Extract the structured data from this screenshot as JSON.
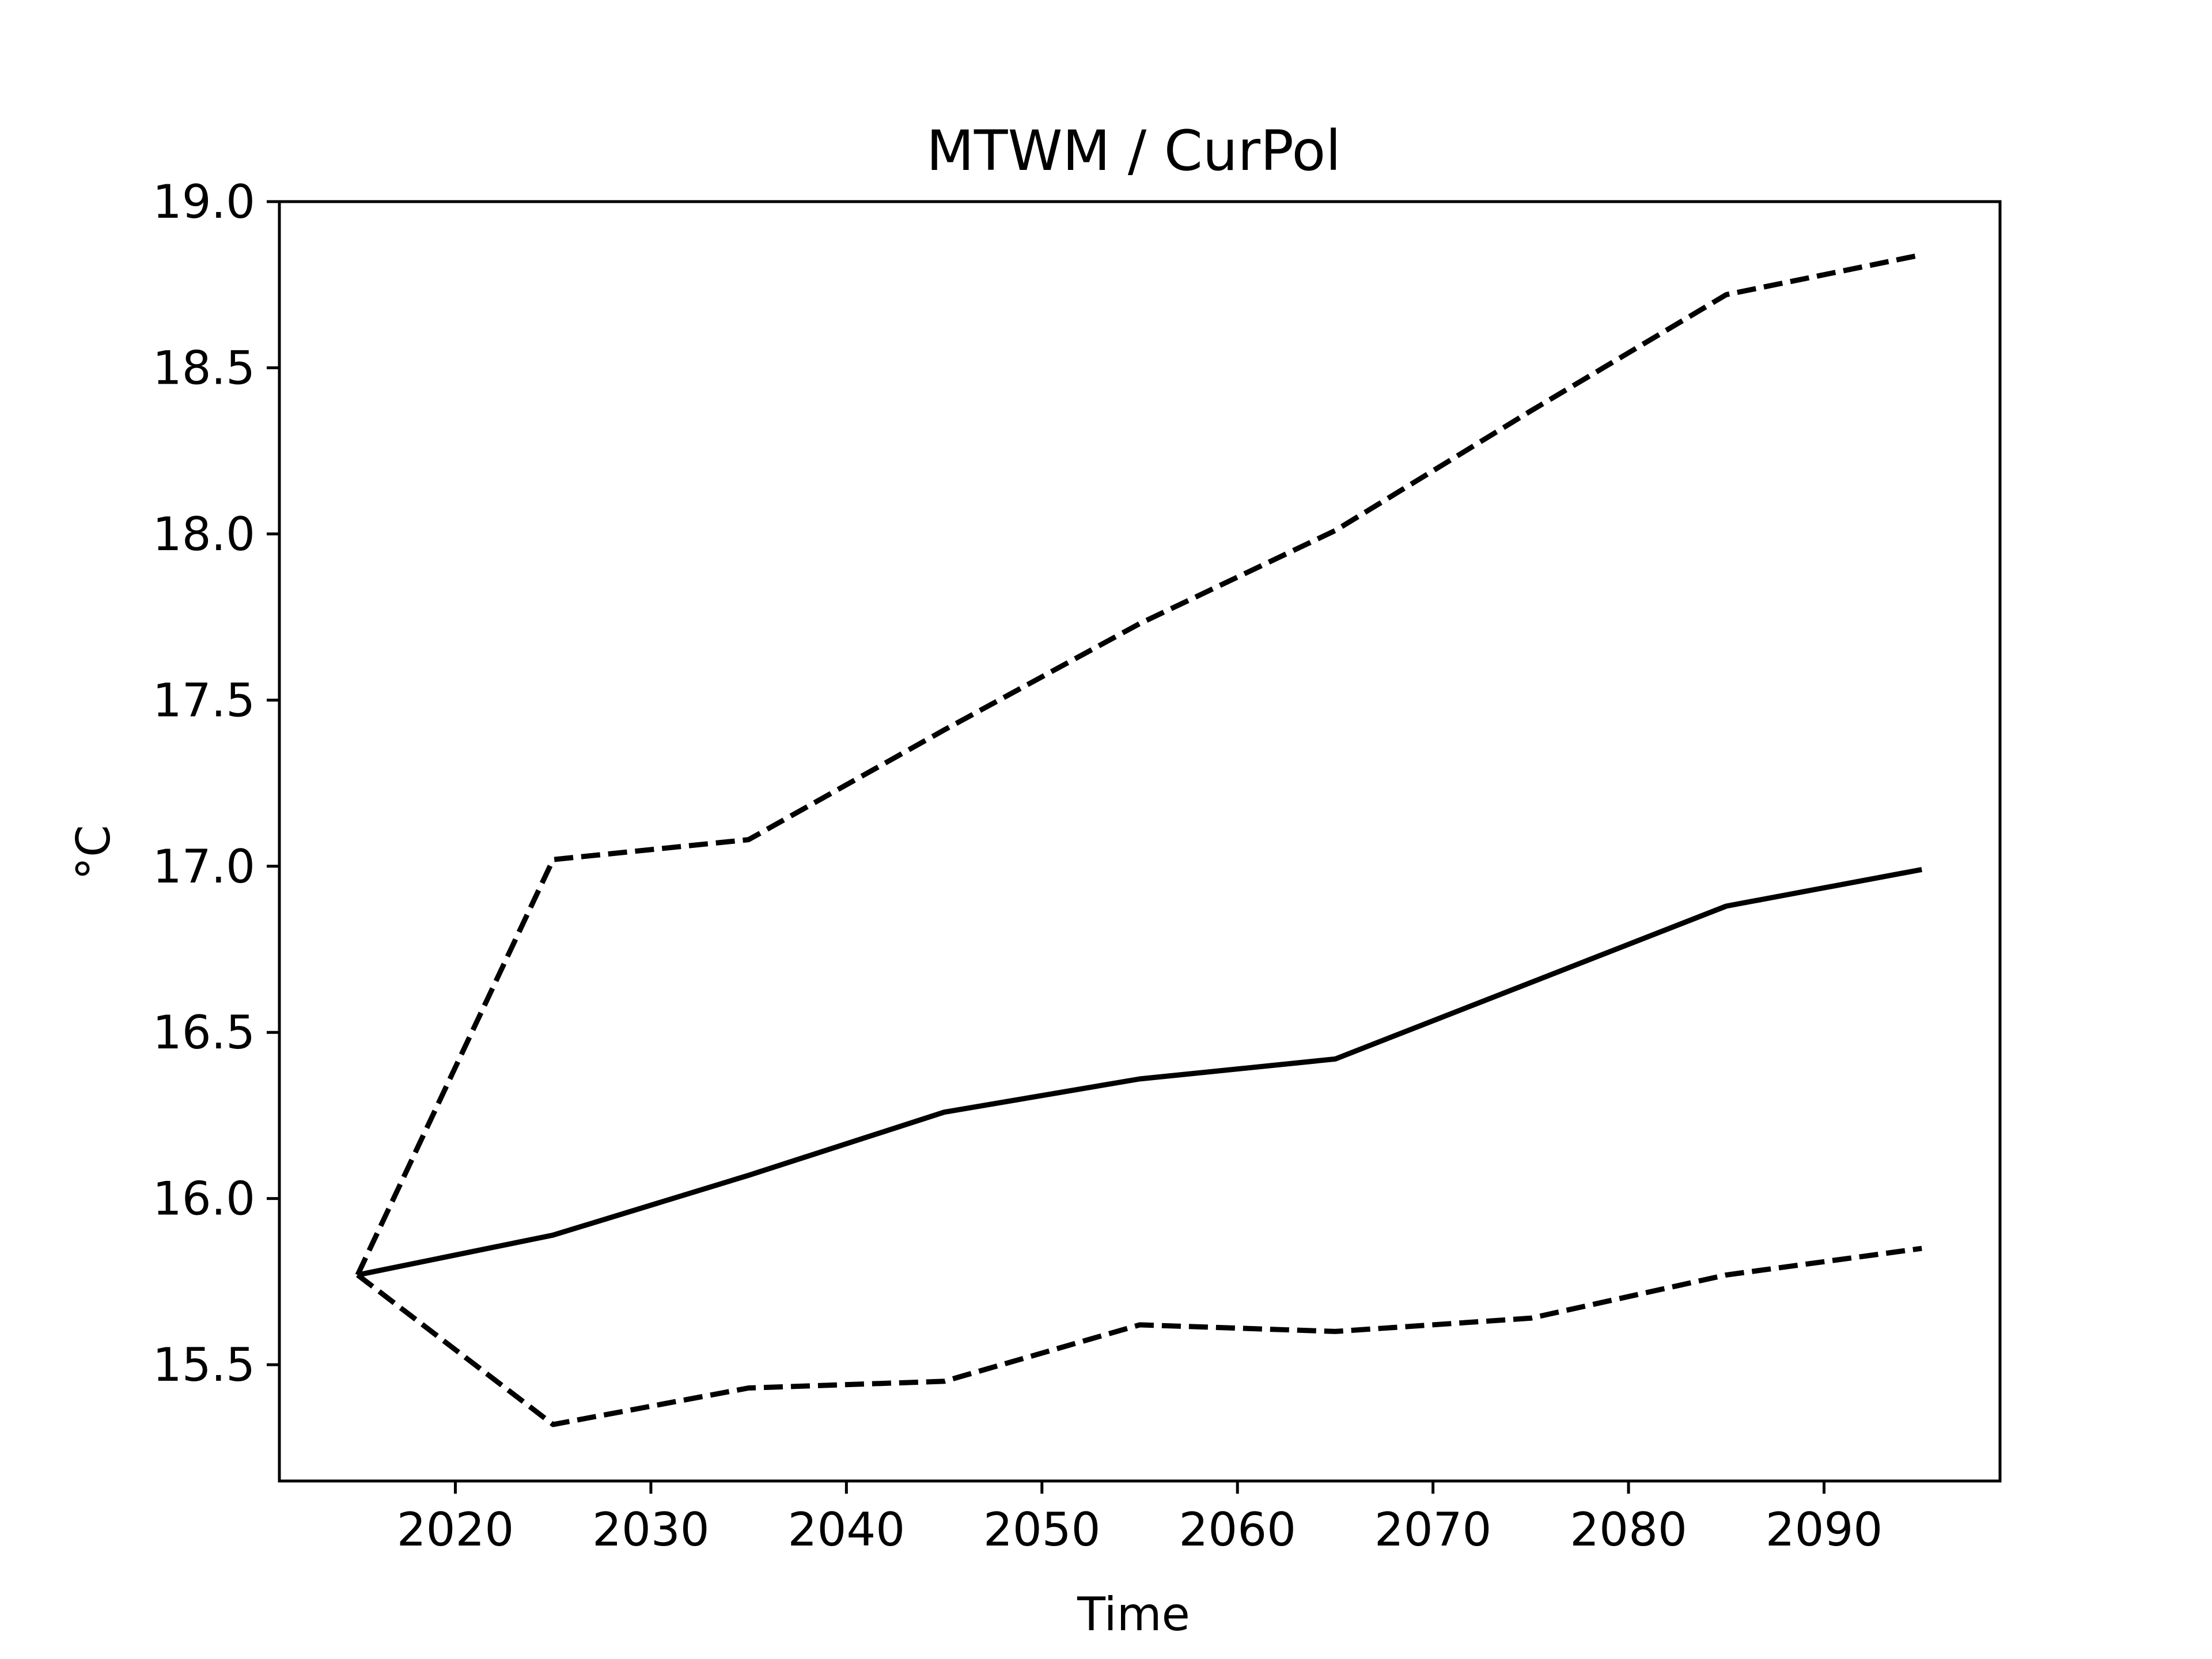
{
  "chart_data": {
    "type": "line",
    "title": "MTWM / CurPol",
    "xlabel": "Time",
    "ylabel": "°C",
    "xlim": [
      2011,
      2099
    ],
    "ylim": [
      15.15,
      19.0
    ],
    "xticks": [
      2020,
      2030,
      2040,
      2050,
      2060,
      2070,
      2080,
      2090
    ],
    "yticks": [
      15.5,
      16.0,
      16.5,
      17.0,
      17.5,
      18.0,
      18.5,
      19.0
    ],
    "grid": false,
    "legend": "none",
    "x": [
      2015,
      2025,
      2035,
      2045,
      2055,
      2065,
      2075,
      2085,
      2095
    ],
    "series": [
      {
        "style": "solid",
        "color": "#000000",
        "values": [
          15.77,
          15.89,
          16.07,
          16.26,
          16.36,
          16.42,
          16.65,
          16.88,
          16.99
        ]
      },
      {
        "style": "dashed",
        "color": "#000000",
        "values": [
          15.77,
          17.02,
          17.08,
          17.41,
          17.73,
          18.01,
          18.37,
          18.72,
          18.84
        ]
      },
      {
        "style": "dashed",
        "color": "#000000",
        "values": [
          15.77,
          15.32,
          15.43,
          15.45,
          15.62,
          15.6,
          15.64,
          15.77,
          15.85
        ]
      }
    ]
  }
}
